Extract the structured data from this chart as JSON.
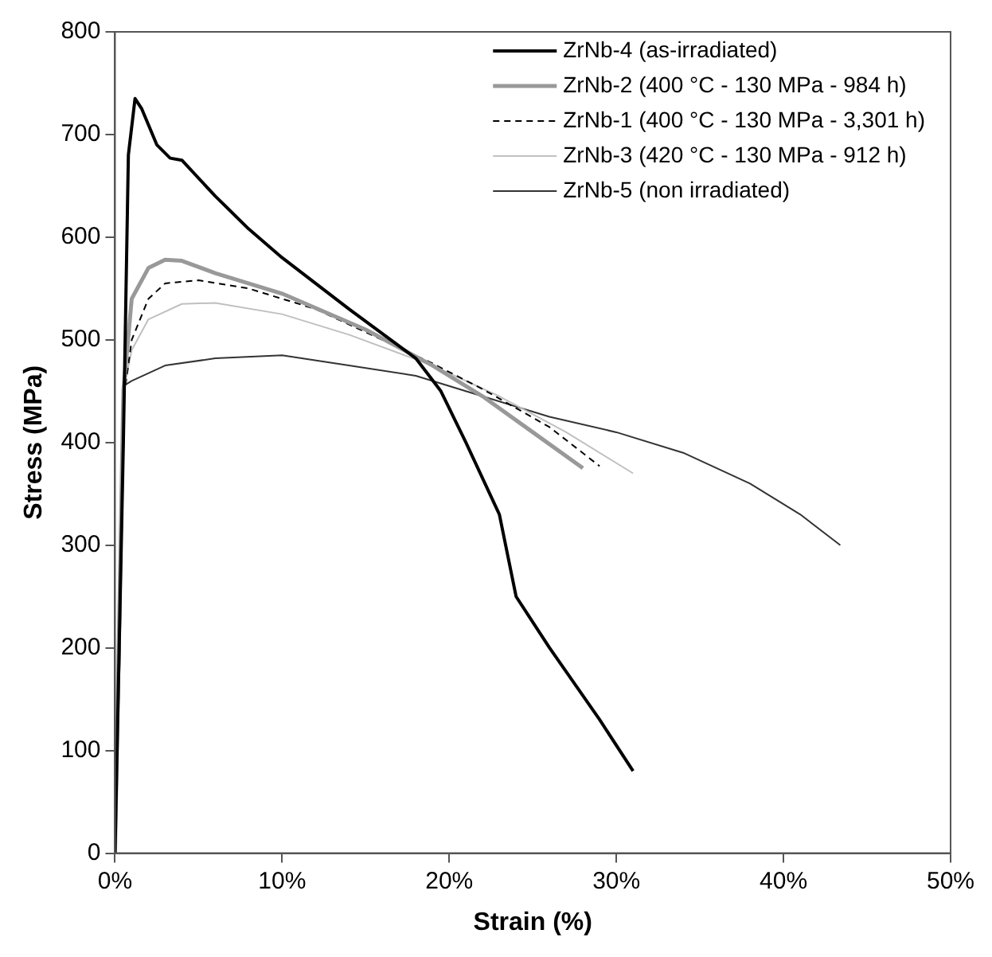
{
  "chart_data": {
    "type": "line",
    "xlabel": "Strain (%)",
    "ylabel": "Stress (MPa)",
    "xlim": [
      0,
      50
    ],
    "xticks": [
      {
        "value": 0,
        "label": "0%"
      },
      {
        "value": 10,
        "label": "10%"
      },
      {
        "value": 20,
        "label": "20%"
      },
      {
        "value": 30,
        "label": "30%"
      },
      {
        "value": 40,
        "label": "40%"
      },
      {
        "value": 50,
        "label": "50%"
      }
    ],
    "ylim": [
      0,
      800
    ],
    "yticks": [
      0,
      100,
      200,
      300,
      400,
      500,
      600,
      700,
      800
    ],
    "grid": false,
    "legend": "top right",
    "marker": "none",
    "series": [
      {
        "name": "ZrNb-4 (as-irradiated)",
        "color": "#000000",
        "line_style": "solid",
        "x": [
          0,
          0.5,
          0.8,
          1.2,
          1.6,
          2.5,
          3.3,
          4,
          6,
          8,
          10,
          14,
          18,
          19.5,
          21,
          23,
          24,
          26,
          29,
          31
        ],
        "values": [
          0,
          400,
          680,
          735,
          725,
          690,
          677,
          675,
          640,
          608,
          580,
          530,
          482,
          450,
          400,
          330,
          250,
          200,
          130,
          80
        ]
      },
      {
        "name": "ZrNb-2 (400 °C - 130 MPa - 984 h)",
        "color": "#999999",
        "line_style": "solid",
        "x": [
          0,
          0.5,
          1,
          2,
          3,
          4,
          6,
          10,
          15,
          19,
          22,
          25,
          28
        ],
        "values": [
          0,
          450,
          540,
          570,
          578,
          577,
          565,
          545,
          510,
          475,
          445,
          410,
          375
        ]
      },
      {
        "name": "ZrNb-1 (400 °C - 130 MPa - 3,301 h)",
        "color": "#000000",
        "line_style": "dashed",
        "x": [
          0,
          0.5,
          1,
          2,
          3,
          5,
          8,
          12,
          16,
          19,
          22,
          26,
          29
        ],
        "values": [
          0,
          440,
          500,
          540,
          555,
          558,
          550,
          530,
          500,
          477,
          452,
          415,
          377
        ]
      },
      {
        "name": "ZrNb-3 (420 °C - 130 MPa - 912 h)",
        "color": "#c0c0c0",
        "line_style": "solid",
        "x": [
          0,
          0.5,
          1,
          2,
          4,
          6,
          10,
          14,
          19,
          23,
          27,
          31
        ],
        "values": [
          0,
          450,
          490,
          520,
          535,
          536,
          525,
          505,
          475,
          445,
          410,
          370
        ]
      },
      {
        "name": "ZrNb-5 (non irradiated)",
        "color": "#333333",
        "line_style": "solid",
        "x": [
          0,
          0.3,
          0.5,
          1,
          3,
          6,
          10,
          14,
          18,
          22,
          26,
          30,
          34,
          38,
          41,
          43.4
        ],
        "values": [
          0,
          200,
          455,
          460,
          475,
          482,
          485,
          475,
          465,
          445,
          425,
          410,
          390,
          360,
          330,
          300
        ]
      }
    ]
  }
}
